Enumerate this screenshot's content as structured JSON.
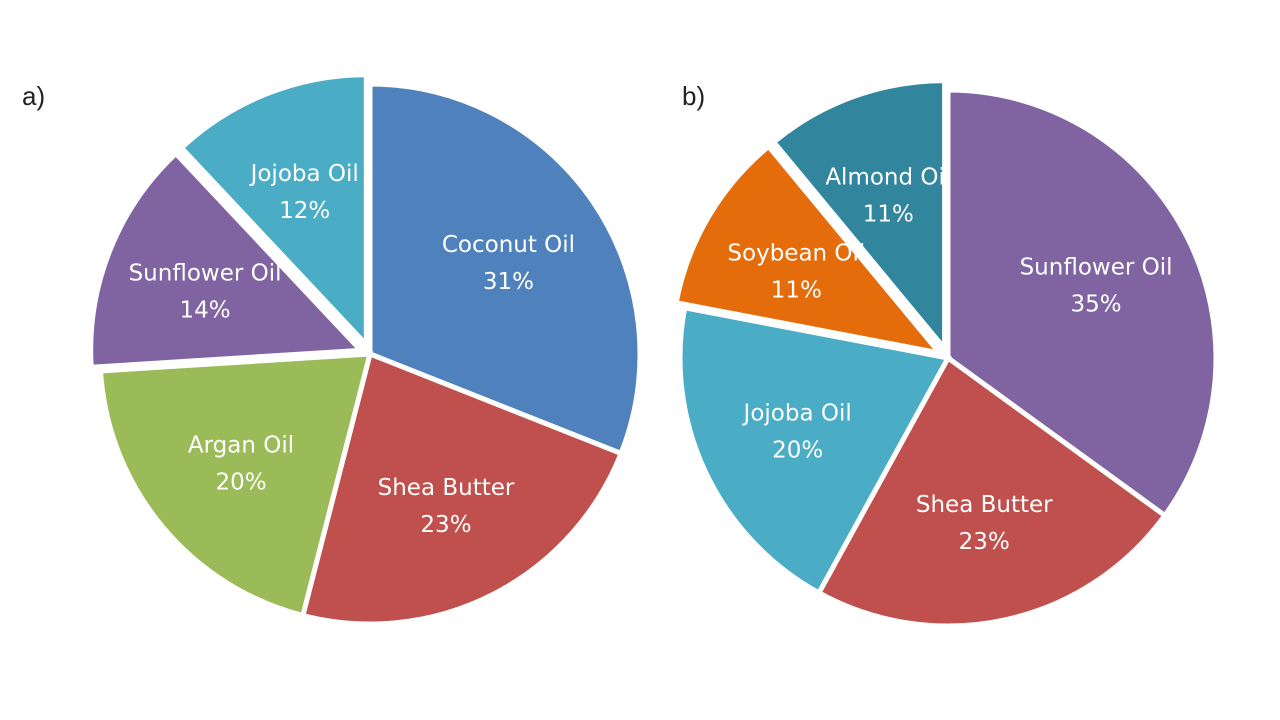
{
  "chart_data": [
    {
      "type": "pie",
      "panel_label": "a)",
      "categories": [
        "Coconut Oil",
        "Shea Butter",
        "Argan Oil",
        "Sunflower Oil",
        "Jojoba Oil"
      ],
      "values": [
        31,
        23,
        20,
        14,
        12
      ],
      "value_labels": [
        "31%",
        "23%",
        "20%",
        "14%",
        "12%"
      ],
      "colors": [
        "#4f81bd",
        "#c0504d",
        "#9bbb59",
        "#8064a2",
        "#4bacc6"
      ],
      "exploded": [
        "Sunflower Oil",
        "Jojoba Oil"
      ],
      "start_angle_deg": 0,
      "direction": "clockwise"
    },
    {
      "type": "pie",
      "panel_label": "b)",
      "categories": [
        "Sunflower Oil",
        "Shea Butter",
        "Jojoba Oil",
        "Soybean Oil",
        "Almond Oil"
      ],
      "values": [
        35,
        23,
        20,
        11,
        11
      ],
      "value_labels": [
        "35%",
        "23%",
        "20%",
        "11%",
        "11%"
      ],
      "colors": [
        "#8064a2",
        "#c0504d",
        "#4bacc6",
        "#e46c0a",
        "#31859c"
      ],
      "exploded": [
        "Soybean Oil",
        "Almond Oil"
      ],
      "start_angle_deg": 0,
      "direction": "clockwise"
    }
  ]
}
